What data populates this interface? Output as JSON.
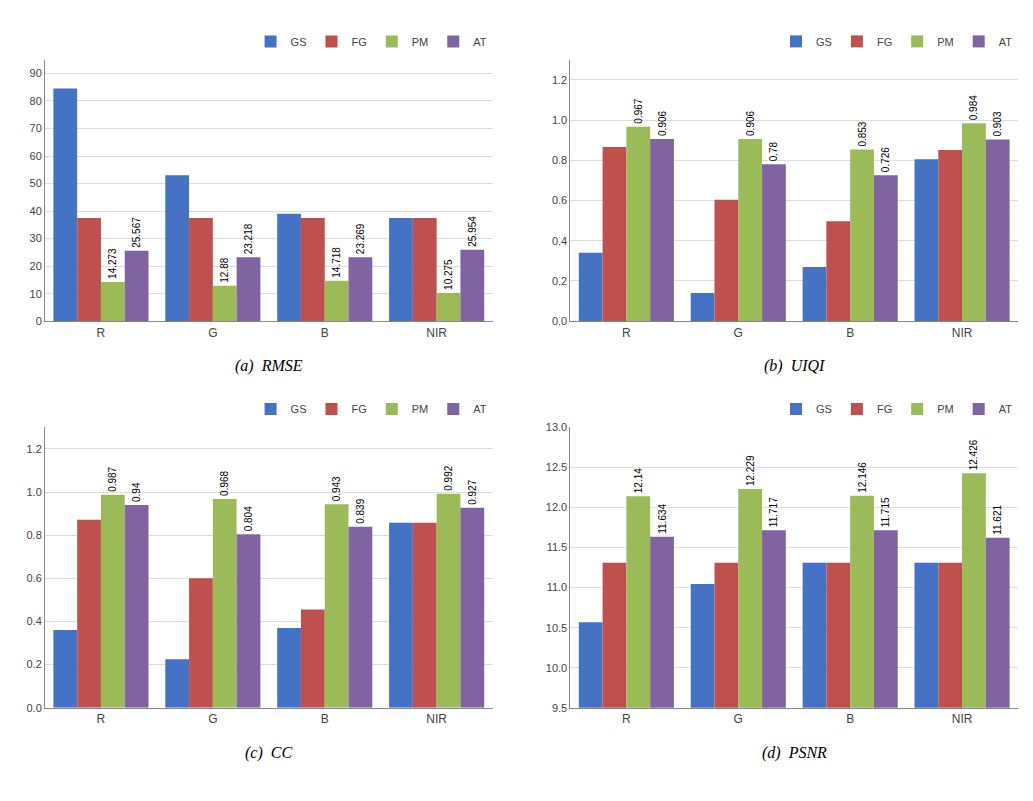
{
  "chart_data": [
    {
      "type": "bar",
      "title": "(a)  RMSE",
      "categories": [
        "R",
        "G",
        "B",
        "NIR"
      ],
      "series": [
        {
          "name": "GS",
          "color": "#4472C4",
          "values": [
            84.5,
            53.0,
            39.0,
            37.5
          ]
        },
        {
          "name": "FG",
          "color": "#C0504D",
          "values": [
            37.5,
            37.5,
            37.5,
            37.5
          ]
        },
        {
          "name": "PM",
          "color": "#9BBB59",
          "values": [
            14.273,
            12.88,
            14.718,
            10.275
          ],
          "value_labels": [
            "14.273",
            "12.88",
            "14.718",
            "10.275"
          ],
          "data_labels": true
        },
        {
          "name": "AT",
          "color": "#8064A2",
          "values": [
            25.567,
            23.218,
            23.269,
            25.954
          ],
          "value_labels": [
            "25.567",
            "23.218",
            "23.269",
            "25.954"
          ],
          "data_labels": true
        }
      ],
      "ylim": [
        0,
        95
      ],
      "yticks": [
        0,
        10,
        20,
        30,
        40,
        50,
        60,
        70,
        80,
        90
      ],
      "grid": true,
      "legend": "upper right"
    },
    {
      "type": "bar",
      "title": "(b)  UIQI",
      "categories": [
        "R",
        "G",
        "B",
        "NIR"
      ],
      "series": [
        {
          "name": "GS",
          "color": "#4472C4",
          "values": [
            0.34,
            0.14,
            0.27,
            0.805
          ]
        },
        {
          "name": "FG",
          "color": "#C0504D",
          "values": [
            0.866,
            0.604,
            0.497,
            0.851
          ]
        },
        {
          "name": "PM",
          "color": "#9BBB59",
          "values": [
            0.967,
            0.906,
            0.853,
            0.984
          ],
          "value_labels": [
            "0.967",
            "0.906",
            "0.853",
            "0.984"
          ],
          "data_labels": true
        },
        {
          "name": "AT",
          "color": "#8064A2",
          "values": [
            0.906,
            0.78,
            0.726,
            0.903
          ],
          "value_labels": [
            "0.906",
            "0.78",
            "0.726",
            "0.903"
          ],
          "data_labels": true
        }
      ],
      "ylim": [
        0,
        1.3
      ],
      "yticks": [
        {
          "value": 0,
          "label": "0.0"
        },
        0.2,
        0.4,
        0.6,
        0.8,
        {
          "value": 1.0,
          "label": "1.0"
        },
        1.2
      ],
      "grid": true,
      "legend": "upper right"
    },
    {
      "type": "bar",
      "title": "(c)  CC",
      "categories": [
        "R",
        "G",
        "B",
        "NIR"
      ],
      "series": [
        {
          "name": "GS",
          "color": "#4472C4",
          "values": [
            0.36,
            0.225,
            0.37,
            0.858
          ]
        },
        {
          "name": "FG",
          "color": "#C0504D",
          "values": [
            0.872,
            0.6,
            0.456,
            0.858
          ]
        },
        {
          "name": "PM",
          "color": "#9BBB59",
          "values": [
            0.987,
            0.968,
            0.943,
            0.992
          ],
          "value_labels": [
            "0.987",
            "0.968",
            "0.943",
            "0.992"
          ],
          "data_labels": true
        },
        {
          "name": "AT",
          "color": "#8064A2",
          "values": [
            0.94,
            0.804,
            0.839,
            0.927
          ],
          "value_labels": [
            "0.94",
            "0.804",
            "0.839",
            "0.927"
          ],
          "data_labels": true
        }
      ],
      "ylim": [
        0,
        1.3
      ],
      "yticks": [
        {
          "value": 0,
          "label": "0.0"
        },
        0.2,
        0.4,
        0.6,
        0.8,
        {
          "value": 1.0,
          "label": "1.0"
        },
        1.2
      ],
      "grid": true,
      "legend": "upper right"
    },
    {
      "type": "bar",
      "title": "(d)  PSNR",
      "categories": [
        "R",
        "G",
        "B",
        "NIR"
      ],
      "series": [
        {
          "name": "GS",
          "color": "#4472C4",
          "values": [
            10.567,
            11.046,
            11.311,
            11.311
          ]
        },
        {
          "name": "FG",
          "color": "#C0504D",
          "values": [
            11.311,
            11.311,
            11.311,
            11.311
          ]
        },
        {
          "name": "PM",
          "color": "#9BBB59",
          "values": [
            12.14,
            12.229,
            12.146,
            12.426
          ],
          "value_labels": [
            "12.14",
            "12.229",
            "12.146",
            "12.426"
          ],
          "data_labels": true
        },
        {
          "name": "AT",
          "color": "#8064A2",
          "values": [
            11.634,
            11.717,
            11.715,
            11.621
          ],
          "value_labels": [
            "11.634",
            "11.717",
            "11.715",
            "11.621"
          ],
          "data_labels": true
        }
      ],
      "ylim": [
        9.5,
        13.0
      ],
      "yticks": [
        9.5,
        {
          "value": 10.0,
          "label": "10.0"
        },
        10.5,
        {
          "value": 11.0,
          "label": "11.0"
        },
        11.5,
        {
          "value": 12.0,
          "label": "12.0"
        },
        12.5,
        {
          "value": 13.0,
          "label": "13.0"
        }
      ],
      "grid": true,
      "legend": "upper right"
    }
  ]
}
